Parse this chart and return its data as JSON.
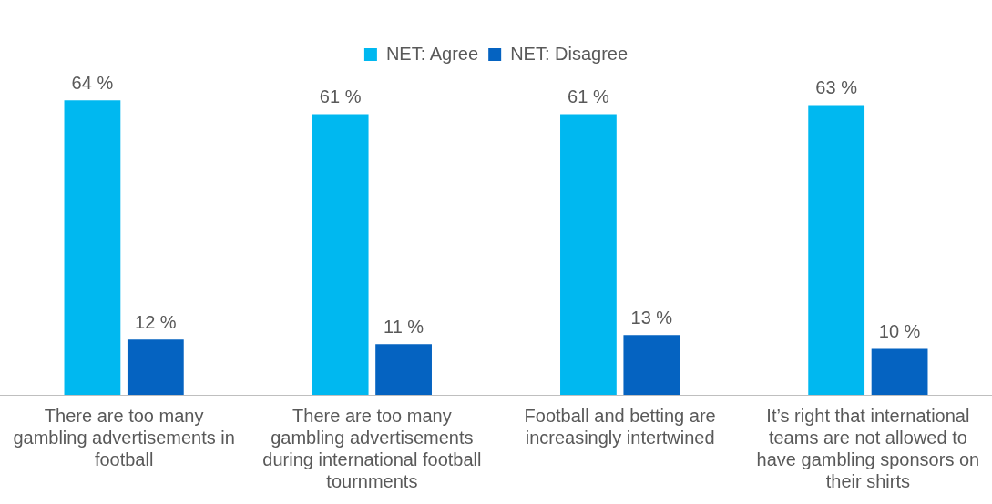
{
  "chart_data": {
    "type": "bar",
    "categories": [
      "There are too many gambling advertisements in football",
      "There are too many gambling advertisements during international football tournments",
      "Football and betting are increasingly intertwined",
      "It’s right that international teams are not allowed to have gambling sponsors on their shirts"
    ],
    "series": [
      {
        "name": "NET: Agree",
        "color": "#00b8f0",
        "values": [
          64,
          61,
          61,
          63
        ],
        "value_labels": [
          "64 %",
          "61 %",
          "61 %",
          "63 %"
        ]
      },
      {
        "name": "NET: Disagree",
        "color": "#0563c1",
        "values": [
          12,
          11,
          13,
          10
        ],
        "value_labels": [
          "12 %",
          "11 %",
          "13 %",
          "10 %"
        ]
      }
    ],
    "legend": "top",
    "grid": false
  }
}
